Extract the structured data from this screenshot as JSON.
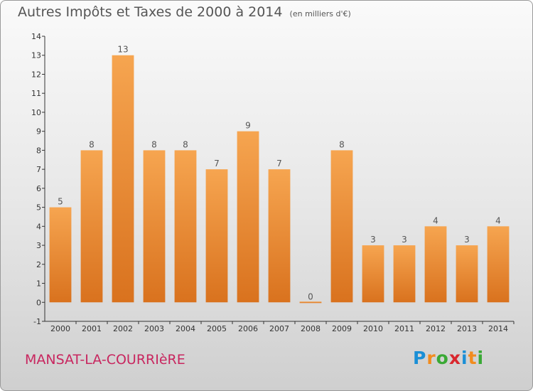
{
  "title": "Autres Impôts et Taxes de 2000 à 2014",
  "unit": "(en milliers d'€)",
  "commune": "MANSAT-LA-COURRIèRE",
  "logo": {
    "letters": [
      "P",
      "r",
      "o",
      "x",
      "i",
      "t",
      "i"
    ]
  },
  "colors": {
    "bar_light": "#f6a550",
    "bar_dark": "#d9721e",
    "logo": [
      "#1a8fd6",
      "#f28c1e",
      "#3aa935",
      "#d9272e",
      "#1a8fd6",
      "#f28c1e",
      "#3aa935"
    ]
  },
  "chart_data": {
    "type": "bar",
    "categories": [
      "2000",
      "2001",
      "2002",
      "2003",
      "2004",
      "2005",
      "2006",
      "2007",
      "2008",
      "2009",
      "2010",
      "2011",
      "2012",
      "2013",
      "2014"
    ],
    "values": [
      5,
      8,
      13,
      8,
      8,
      7,
      9,
      7,
      0,
      8,
      3,
      3,
      4,
      3,
      4
    ],
    "title": "Autres Impôts et Taxes de 2000 à 2014",
    "xlabel": "",
    "ylabel": "",
    "ylim": [
      -1,
      14
    ],
    "yticks": [
      "-1",
      "0",
      "1",
      "2",
      "3",
      "4",
      "5",
      "6",
      "7",
      "8",
      "9",
      "10",
      "11",
      "12",
      "13",
      "14"
    ],
    "grid": false,
    "legend": "none"
  }
}
